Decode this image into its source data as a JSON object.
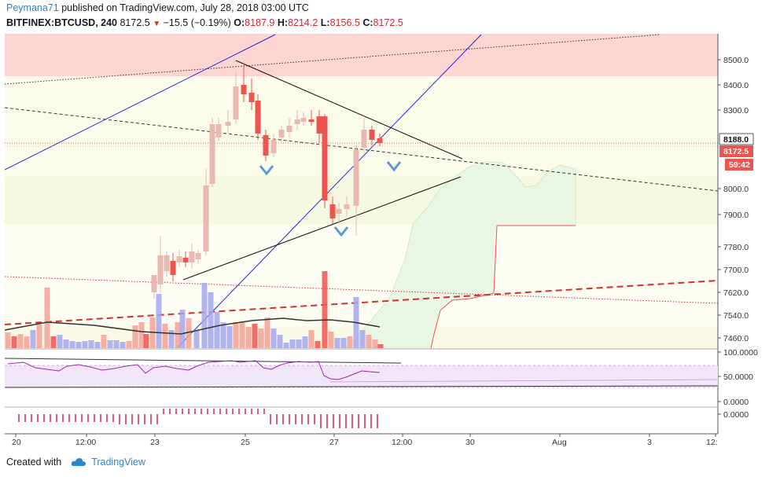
{
  "header": {
    "author": "Peymana71",
    "published": "published on TradingView.com, July 28, 2018 03:00 UTC",
    "symbol": "BITFINEX:BTCUSD, 240",
    "last": "8172.5",
    "change": "−15.5 (−0.19%)",
    "open_label": "O:",
    "open": "8187.9",
    "high_label": "H:",
    "high": "8214.2",
    "low_label": "L:",
    "low": "8156.5",
    "close_label": "C:",
    "close": "8172.5"
  },
  "price_axis": {
    "ticks": [
      "8500.0",
      "8400.0",
      "8300.0",
      "8000.0",
      "7900.0",
      "7780.0",
      "7700.0",
      "7620.0",
      "7540.0",
      "7460.0"
    ],
    "tag_ichimoku": "8188.0",
    "tag_price": "8172.5",
    "tag_countdown": "59:42"
  },
  "osc_axis": {
    "rsi_ticks": [
      "100.0000",
      "50.0000",
      "0.0000"
    ],
    "hist_tick": "0.0000"
  },
  "time_axis": [
    "20",
    "12:00",
    "23",
    "25",
    "27",
    "12:00",
    "30",
    "Aug",
    "3",
    "12:"
  ],
  "colors": {
    "up_candle": "#e8b9b0",
    "down_candle": "#ef5350",
    "resistance_zone": "#fcd4d0",
    "support_zone": "#fbfbe9",
    "cloud": "#eaf6e4",
    "blue_line": "#2626d9",
    "rsi": "#9c27b0",
    "brand": "#2e84c6"
  },
  "footer": {
    "created": "Created with",
    "brand": "TradingView"
  }
}
